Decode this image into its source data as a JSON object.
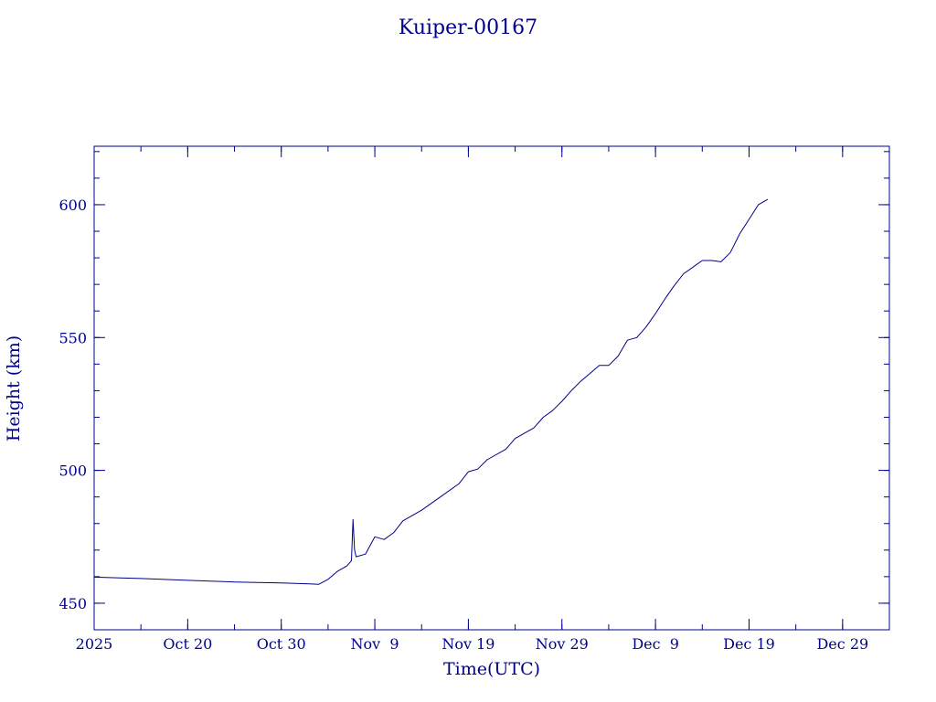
{
  "chart_data": {
    "type": "line",
    "title": "Kuiper-00167",
    "xlabel": "Time(UTC)",
    "ylabel": "Height (km)",
    "x_axis_type": "date",
    "xlim": [
      "2025-10-10",
      "2026-01-03"
    ],
    "ylim": [
      440,
      622
    ],
    "grid": false,
    "x_tick_labels": [
      {
        "date": "2025-10-10",
        "label": "2025"
      },
      {
        "date": "2025-10-20",
        "label": "Oct 20"
      },
      {
        "date": "2025-10-30",
        "label": "Oct 30"
      },
      {
        "date": "2025-11-09",
        "label": "Nov  9"
      },
      {
        "date": "2025-11-19",
        "label": "Nov 19"
      },
      {
        "date": "2025-11-29",
        "label": "Nov 29"
      },
      {
        "date": "2025-12-09",
        "label": "Dec  9"
      },
      {
        "date": "2025-12-19",
        "label": "Dec 19"
      },
      {
        "date": "2025-12-29",
        "label": "Dec 29"
      }
    ],
    "y_ticks": [
      450,
      500,
      550,
      600
    ],
    "y_tick_labels": [
      "450",
      "500",
      "550",
      "600"
    ],
    "series": [
      {
        "points": [
          [
            "2025-10-10",
            459.8
          ],
          [
            "2025-10-15",
            459.3
          ],
          [
            "2025-10-20",
            458.6
          ],
          [
            "2025-10-25",
            458.0
          ],
          [
            "2025-10-30",
            457.6
          ],
          [
            "2025-11-02",
            457.3
          ],
          [
            "2025-11-03",
            457.1
          ],
          [
            "2025-11-04",
            459.0
          ],
          [
            "2025-11-05",
            462.0
          ],
          [
            "2025-11-06",
            464.0
          ],
          [
            "2025-11-06T12",
            466.0
          ],
          [
            "2025-11-06T16",
            481.5
          ],
          [
            "2025-11-06T20",
            470.0
          ],
          [
            "2025-11-07",
            467.5
          ],
          [
            "2025-11-08",
            468.5
          ],
          [
            "2025-11-09",
            475.0
          ],
          [
            "2025-11-10",
            474.0
          ],
          [
            "2025-11-11",
            476.5
          ],
          [
            "2025-11-12",
            481.0
          ],
          [
            "2025-11-14",
            485.0
          ],
          [
            "2025-11-16",
            490.0
          ],
          [
            "2025-11-18",
            495.0
          ],
          [
            "2025-11-19",
            499.5
          ],
          [
            "2025-11-20",
            500.5
          ],
          [
            "2025-11-21",
            504.0
          ],
          [
            "2025-11-23",
            508.0
          ],
          [
            "2025-11-24",
            512.0
          ],
          [
            "2025-11-26",
            516.0
          ],
          [
            "2025-11-27",
            520.0
          ],
          [
            "2025-11-28",
            522.5
          ],
          [
            "2025-11-29",
            526.0
          ],
          [
            "2025-11-30",
            530.0
          ],
          [
            "2025-12-01",
            533.5
          ],
          [
            "2025-12-02",
            536.5
          ],
          [
            "2025-12-03",
            539.5
          ],
          [
            "2025-12-04",
            539.5
          ],
          [
            "2025-12-05",
            543.0
          ],
          [
            "2025-12-06",
            549.0
          ],
          [
            "2025-12-07",
            550.0
          ],
          [
            "2025-12-08",
            554.0
          ],
          [
            "2025-12-09",
            559.0
          ],
          [
            "2025-12-10",
            564.5
          ],
          [
            "2025-12-11",
            569.5
          ],
          [
            "2025-12-12",
            574.0
          ],
          [
            "2025-12-13",
            576.5
          ],
          [
            "2025-12-14",
            579.0
          ],
          [
            "2025-12-15",
            579.0
          ],
          [
            "2025-12-16",
            578.5
          ],
          [
            "2025-12-17",
            582.0
          ],
          [
            "2025-12-18",
            589.0
          ],
          [
            "2025-12-19",
            594.5
          ],
          [
            "2025-12-20",
            600.0
          ],
          [
            "2025-12-21",
            602.0
          ]
        ]
      }
    ]
  }
}
